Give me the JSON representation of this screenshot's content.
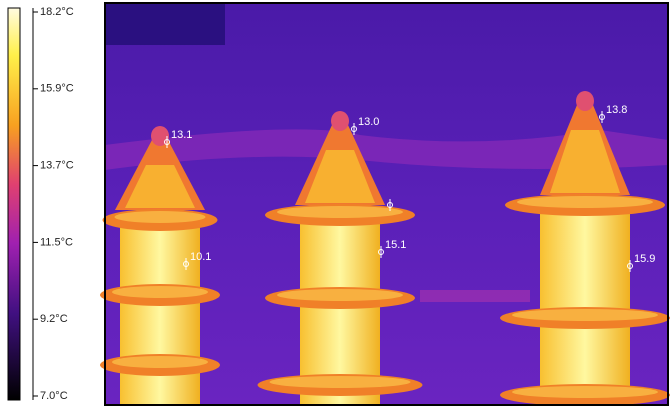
{
  "scale": {
    "labels": [
      "18.2°C",
      "15.9°C",
      "13.7°C",
      "11.5°C",
      "9.2°C",
      "7.0°C"
    ]
  },
  "spots": [
    {
      "label": "13.1"
    },
    {
      "label": "13.0"
    },
    {
      "label": "13.8"
    },
    {
      "label": "10.1"
    },
    {
      "label": "15.1"
    },
    {
      "label": "15.9"
    }
  ]
}
